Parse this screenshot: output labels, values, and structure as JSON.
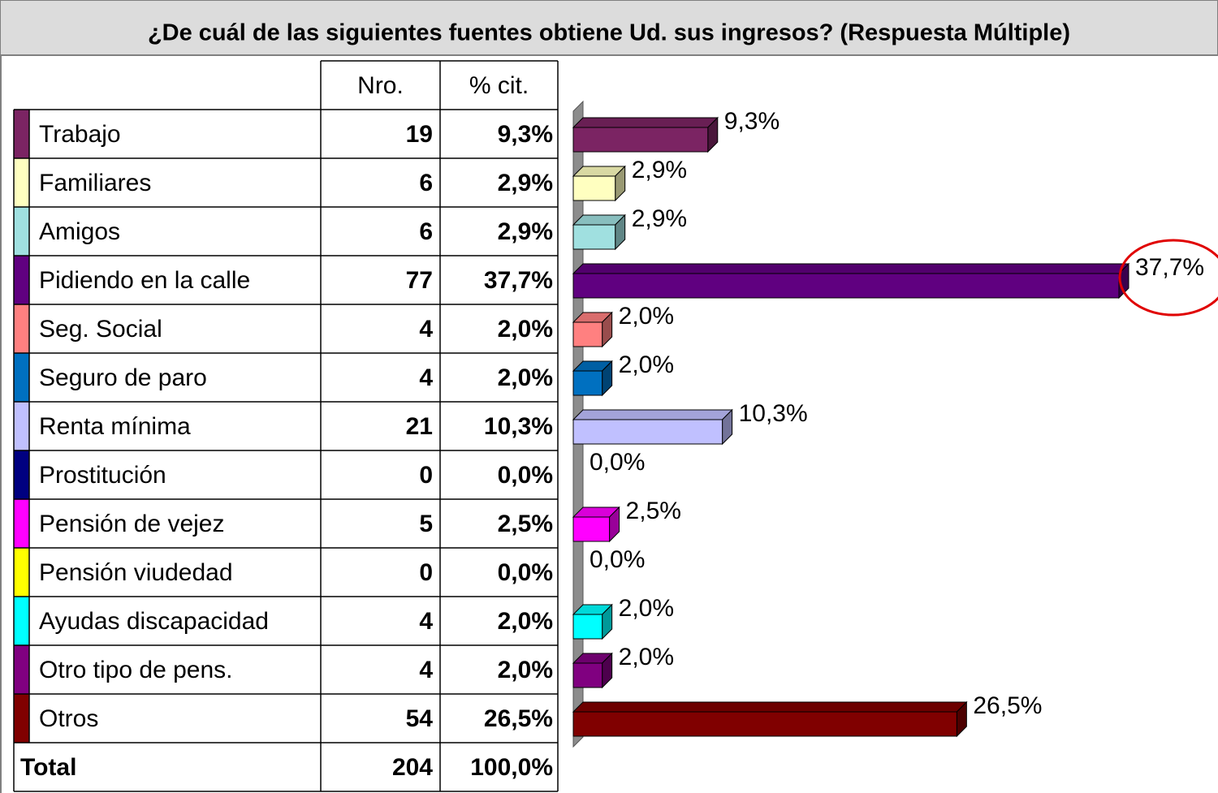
{
  "chart_data": {
    "type": "bar3d",
    "title": "¿De cuál de las siguientes fuentes obtiene Ud. sus ingresos? (Respuesta Múltiple)",
    "categories": [
      "Trabajo",
      "Familiares",
      "Amigos",
      "Pidiendo en la calle",
      "Seg. Social",
      "Seguro de paro",
      "Renta mínima",
      "Prostitución",
      "Pensión de vejez",
      "Pensión viudedad",
      "Ayudas discapacidad",
      "Otro tipo de pens.",
      "Otros"
    ],
    "values": [
      9.3,
      2.9,
      2.9,
      37.7,
      2.0,
      2.0,
      10.3,
      0.0,
      2.5,
      0.0,
      2.0,
      2.0,
      26.5
    ],
    "value_labels": [
      "9,3%",
      "2,9%",
      "2,9%",
      "37,7%",
      "2,0%",
      "2,0%",
      "10,3%",
      "0,0%",
      "2,5%",
      "0,0%",
      "2,0%",
      "2,0%",
      "26,5%"
    ],
    "colors": [
      "#7b2463",
      "#ffffc0",
      "#a0e0e0",
      "#600080",
      "#ff8080",
      "#0070c0",
      "#c0c0ff",
      "#000080",
      "#ff00ff",
      "#ffff00",
      "#00ffff",
      "#800080",
      "#800000"
    ],
    "xlim": [
      0,
      37.7
    ]
  },
  "table": {
    "headers": [
      "Nro.",
      "% cit."
    ],
    "counts": [
      19,
      6,
      6,
      77,
      4,
      4,
      21,
      0,
      5,
      0,
      4,
      4,
      54
    ],
    "total_label": "Total",
    "total_count": 204,
    "total_pct": "100,0%"
  }
}
